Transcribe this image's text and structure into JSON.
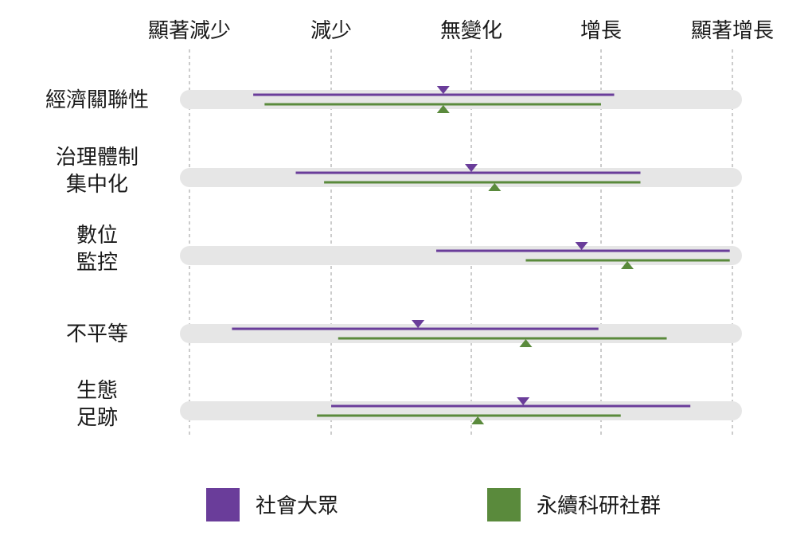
{
  "chart_data": {
    "type": "range",
    "axis_ticks": [
      "顯著減少",
      "減少",
      "無變化",
      "增長",
      "顯著增長"
    ],
    "axis_range": [
      -2,
      2
    ],
    "grid": "vertical-dashed",
    "legend_position": "bottom",
    "categories": [
      [
        "經濟關聯性"
      ],
      [
        "治理體制",
        "集中化"
      ],
      [
        "數位",
        "監控"
      ],
      [
        "不平等"
      ],
      [
        "生態",
        "足跡"
      ]
    ],
    "series": [
      {
        "name": "社會大眾",
        "color": "#6a3d9a",
        "marker": "down-triangle",
        "ranges": [
          {
            "low": -1.55,
            "high": 1.1,
            "mid": -0.2
          },
          {
            "low": -1.25,
            "high": 1.3,
            "mid": 0.0
          },
          {
            "low": -0.25,
            "high": 1.98,
            "mid": 0.85
          },
          {
            "low": -1.7,
            "high": 0.98,
            "mid": -0.38
          },
          {
            "low": -1.0,
            "high": 1.68,
            "mid": 0.4
          }
        ]
      },
      {
        "name": "永續科研社群",
        "color": "#5a8a3c",
        "marker": "up-triangle",
        "ranges": [
          {
            "low": -1.47,
            "high": 1.0,
            "mid": -0.2
          },
          {
            "low": -1.05,
            "high": 1.3,
            "mid": 0.18
          },
          {
            "low": 0.42,
            "high": 1.98,
            "mid": 1.2
          },
          {
            "low": -0.95,
            "high": 1.5,
            "mid": 0.42
          },
          {
            "low": -1.1,
            "high": 1.15,
            "mid": 0.05
          }
        ]
      }
    ]
  }
}
